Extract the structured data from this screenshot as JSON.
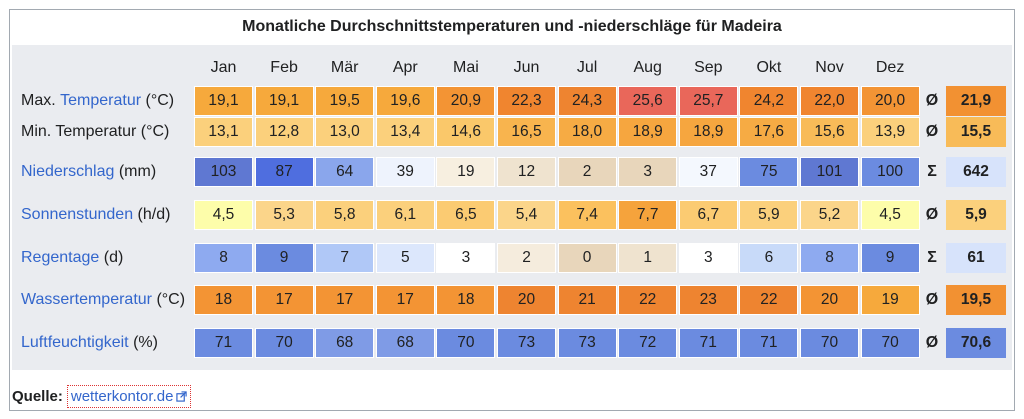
{
  "title": "Monatliche Durchschnittstemperaturen und -niederschläge für Madeira",
  "months": [
    "Jan",
    "Feb",
    "Mär",
    "Apr",
    "Mai",
    "Jun",
    "Jul",
    "Aug",
    "Sep",
    "Okt",
    "Nov",
    "Dez"
  ],
  "rows": [
    {
      "label_prefix": "Max. ",
      "label_link": "Temperatur",
      "label_suffix": " (°C)",
      "values": [
        "19,1",
        "19,1",
        "19,5",
        "19,6",
        "20,9",
        "22,3",
        "24,3",
        "25,6",
        "25,7",
        "24,2",
        "22,0",
        "20,0"
      ],
      "colors": [
        "#f6a93c",
        "#f6a93c",
        "#f6a93c",
        "#f6a93c",
        "#f39434",
        "#f0852f",
        "#ee8430",
        "#e9675a",
        "#e9675a",
        "#f0852f",
        "#f0852f",
        "#f39434"
      ],
      "symbol": "Ø",
      "summary": "21,9",
      "summary_color": "#f29132"
    },
    {
      "label_prefix": "Min. Temperatur (°C)",
      "label_link": "",
      "label_suffix": "",
      "values": [
        "13,1",
        "12,8",
        "13,0",
        "13,4",
        "14,6",
        "16,5",
        "18,0",
        "18,9",
        "18,9",
        "17,6",
        "15,6",
        "13,9"
      ],
      "colors": [
        "#fbd07c",
        "#fbd07c",
        "#fbd07c",
        "#fbd07c",
        "#fac86a",
        "#f8b44e",
        "#f6ab44",
        "#f6a63f",
        "#f6a63f",
        "#f6ab44",
        "#f8bb58",
        "#fbd07c"
      ],
      "symbol": "Ø",
      "summary": "15,5",
      "summary_color": "#f8bb58"
    },
    {
      "label_prefix": "",
      "label_link": "Niederschlag",
      "label_suffix": " (mm)",
      "values": [
        "103",
        "87",
        "64",
        "39",
        "19",
        "12",
        "2",
        "3",
        "37",
        "75",
        "101",
        "100"
      ],
      "colors": [
        "#5f78d2",
        "#4f6edf",
        "#8aa6ec",
        "#eef3fd",
        "#f7efe0",
        "#efe3cf",
        "#e8d6bb",
        "#e8d6bb",
        "#f4f8fe",
        "#6b8be0",
        "#5f78d2",
        "#6b8be0"
      ],
      "symbol": "Σ",
      "summary": "642",
      "summary_color": "#d7e3fb"
    },
    {
      "label_prefix": "",
      "label_link": "Sonnenstunden",
      "label_suffix": " (h/d)",
      "values": [
        "4,5",
        "5,3",
        "5,8",
        "6,1",
        "6,5",
        "5,4",
        "7,4",
        "7,7",
        "6,7",
        "5,9",
        "5,2",
        "4,5"
      ],
      "colors": [
        "#fdfdaa",
        "#fbd58a",
        "#fbd07c",
        "#fbd07c",
        "#fbcb72",
        "#fbd58a",
        "#fbc15e",
        "#f5a33c",
        "#fbcb72",
        "#fbd07c",
        "#fbd58a",
        "#fdfdaa"
      ],
      "symbol": "Ø",
      "summary": "5,9",
      "summary_color": "#fbd07c"
    },
    {
      "label_prefix": "",
      "label_link": "Regentage",
      "label_suffix": " (d)",
      "values": [
        "8",
        "9",
        "7",
        "5",
        "3",
        "2",
        "0",
        "1",
        "3",
        "6",
        "8",
        "9"
      ],
      "colors": [
        "#8eaaf0",
        "#6b8be0",
        "#b0c8f7",
        "#dce7fc",
        "#ffffff",
        "#f5ecdd",
        "#e8d6bb",
        "#efe3cf",
        "#ffffff",
        "#c8daf9",
        "#8eaaf0",
        "#6b8be0"
      ],
      "symbol": "Σ",
      "summary": "61",
      "summary_color": "#d7e3fb"
    },
    {
      "label_prefix": "",
      "label_link": "Wassertemperatur",
      "label_suffix": " (°C)",
      "values": [
        "18",
        "17",
        "17",
        "17",
        "18",
        "20",
        "21",
        "22",
        "23",
        "22",
        "20",
        "19"
      ],
      "colors": [
        "#f39434",
        "#f39434",
        "#f39434",
        "#f39434",
        "#f39434",
        "#ee8430",
        "#ee8430",
        "#ee8430",
        "#ee8430",
        "#ee8430",
        "#f39434",
        "#f6a93c"
      ],
      "symbol": "Ø",
      "summary": "19,5",
      "summary_color": "#f29132"
    },
    {
      "label_prefix": "",
      "label_link": "Luftfeuchtigkeit",
      "label_suffix": " (%)",
      "values": [
        "71",
        "70",
        "68",
        "68",
        "70",
        "73",
        "73",
        "72",
        "71",
        "71",
        "70",
        "70"
      ],
      "colors": [
        "#6b8be0",
        "#6b8be0",
        "#7f9be6",
        "#7f9be6",
        "#6b8be0",
        "#6b8be0",
        "#6b8be0",
        "#6b8be0",
        "#6b8be0",
        "#6b8be0",
        "#6b8be0",
        "#6b8be0"
      ],
      "symbol": "Ø",
      "summary": "70,6",
      "summary_color": "#6b8be0"
    }
  ],
  "source": {
    "label": "Quelle:",
    "link_text": "wetterkontor.de"
  }
}
